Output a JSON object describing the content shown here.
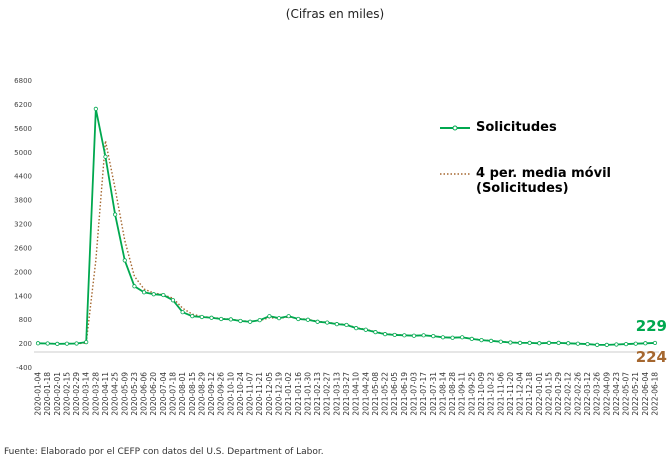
{
  "chart_data": {
    "type": "line",
    "subtitle": "(Cifras en miles)",
    "source": "Fuente: Elaborado por el CEFP con datos del U.S. Department of Labor.",
    "categories": [
      "2020-01-04",
      "2020-01-18",
      "2020-02-01",
      "2020-02-15",
      "2020-02-29",
      "2020-03-14",
      "2020-03-28",
      "2020-04-11",
      "2020-04-25",
      "2020-05-09",
      "2020-05-23",
      "2020-06-06",
      "2020-06-20",
      "2020-07-04",
      "2020-07-18",
      "2020-08-01",
      "2020-08-15",
      "2020-08-29",
      "2020-09-12",
      "2020-09-26",
      "2020-10-10",
      "2020-10-24",
      "2020-11-07",
      "2020-11-21",
      "2020-12-05",
      "2020-12-19",
      "2021-01-02",
      "2021-01-16",
      "2021-01-30",
      "2021-02-13",
      "2021-02-27",
      "2021-03-13",
      "2021-03-27",
      "2021-04-10",
      "2021-04-24",
      "2021-05-08",
      "2021-05-22",
      "2021-06-05",
      "2021-06-19",
      "2021-07-03",
      "2021-07-17",
      "2021-07-31",
      "2021-08-14",
      "2021-08-28",
      "2021-09-11",
      "2021-09-25",
      "2021-10-09",
      "2021-10-23",
      "2021-11-06",
      "2021-11-20",
      "2021-12-04",
      "2021-12-18",
      "2022-01-01",
      "2022-01-15",
      "2022-01-29",
      "2022-02-12",
      "2022-02-26",
      "2022-03-12",
      "2022-03-26",
      "2022-04-09",
      "2022-04-23",
      "2022-05-07",
      "2022-05-21",
      "2022-06-04",
      "2022-06-18"
    ],
    "series": [
      {
        "name": "Solicitudes",
        "color": "#00a84f",
        "style": "solid-markers",
        "values": [
          220,
          215,
          205,
          210,
          215,
          250,
          6100,
          4900,
          3450,
          2300,
          1650,
          1500,
          1450,
          1430,
          1300,
          1000,
          900,
          880,
          860,
          830,
          820,
          780,
          760,
          800,
          900,
          850,
          900,
          830,
          810,
          760,
          740,
          700,
          680,
          600,
          560,
          500,
          450,
          430,
          420,
          410,
          420,
          400,
          370,
          360,
          370,
          330,
          300,
          280,
          260,
          240,
          230,
          230,
          220,
          230,
          230,
          220,
          210,
          200,
          180,
          180,
          190,
          200,
          210,
          220,
          229
        ]
      },
      {
        "name": "4 per. media móvil (Solicitudes)",
        "color": "#a5672f",
        "style": "dotted",
        "values": [
          220,
          216,
          208,
          210,
          212,
          225,
          2300,
          5300,
          4100,
          2800,
          1900,
          1580,
          1480,
          1440,
          1350,
          1100,
          950,
          890,
          870,
          840,
          825,
          790,
          770,
          790,
          860,
          850,
          880,
          840,
          820,
          770,
          745,
          710,
          690,
          610,
          570,
          510,
          460,
          440,
          425,
          412,
          415,
          405,
          375,
          365,
          368,
          335,
          305,
          285,
          265,
          245,
          233,
          230,
          222,
          228,
          230,
          222,
          212,
          202,
          185,
          182,
          188,
          198,
          208,
          218,
          224
        ]
      }
    ],
    "ylim": [
      -400,
      6800
    ],
    "yticks": [
      -400,
      200,
      800,
      1400,
      2000,
      2600,
      3200,
      3800,
      4400,
      5000,
      5600,
      6200,
      6800
    ],
    "grid": false
  }
}
